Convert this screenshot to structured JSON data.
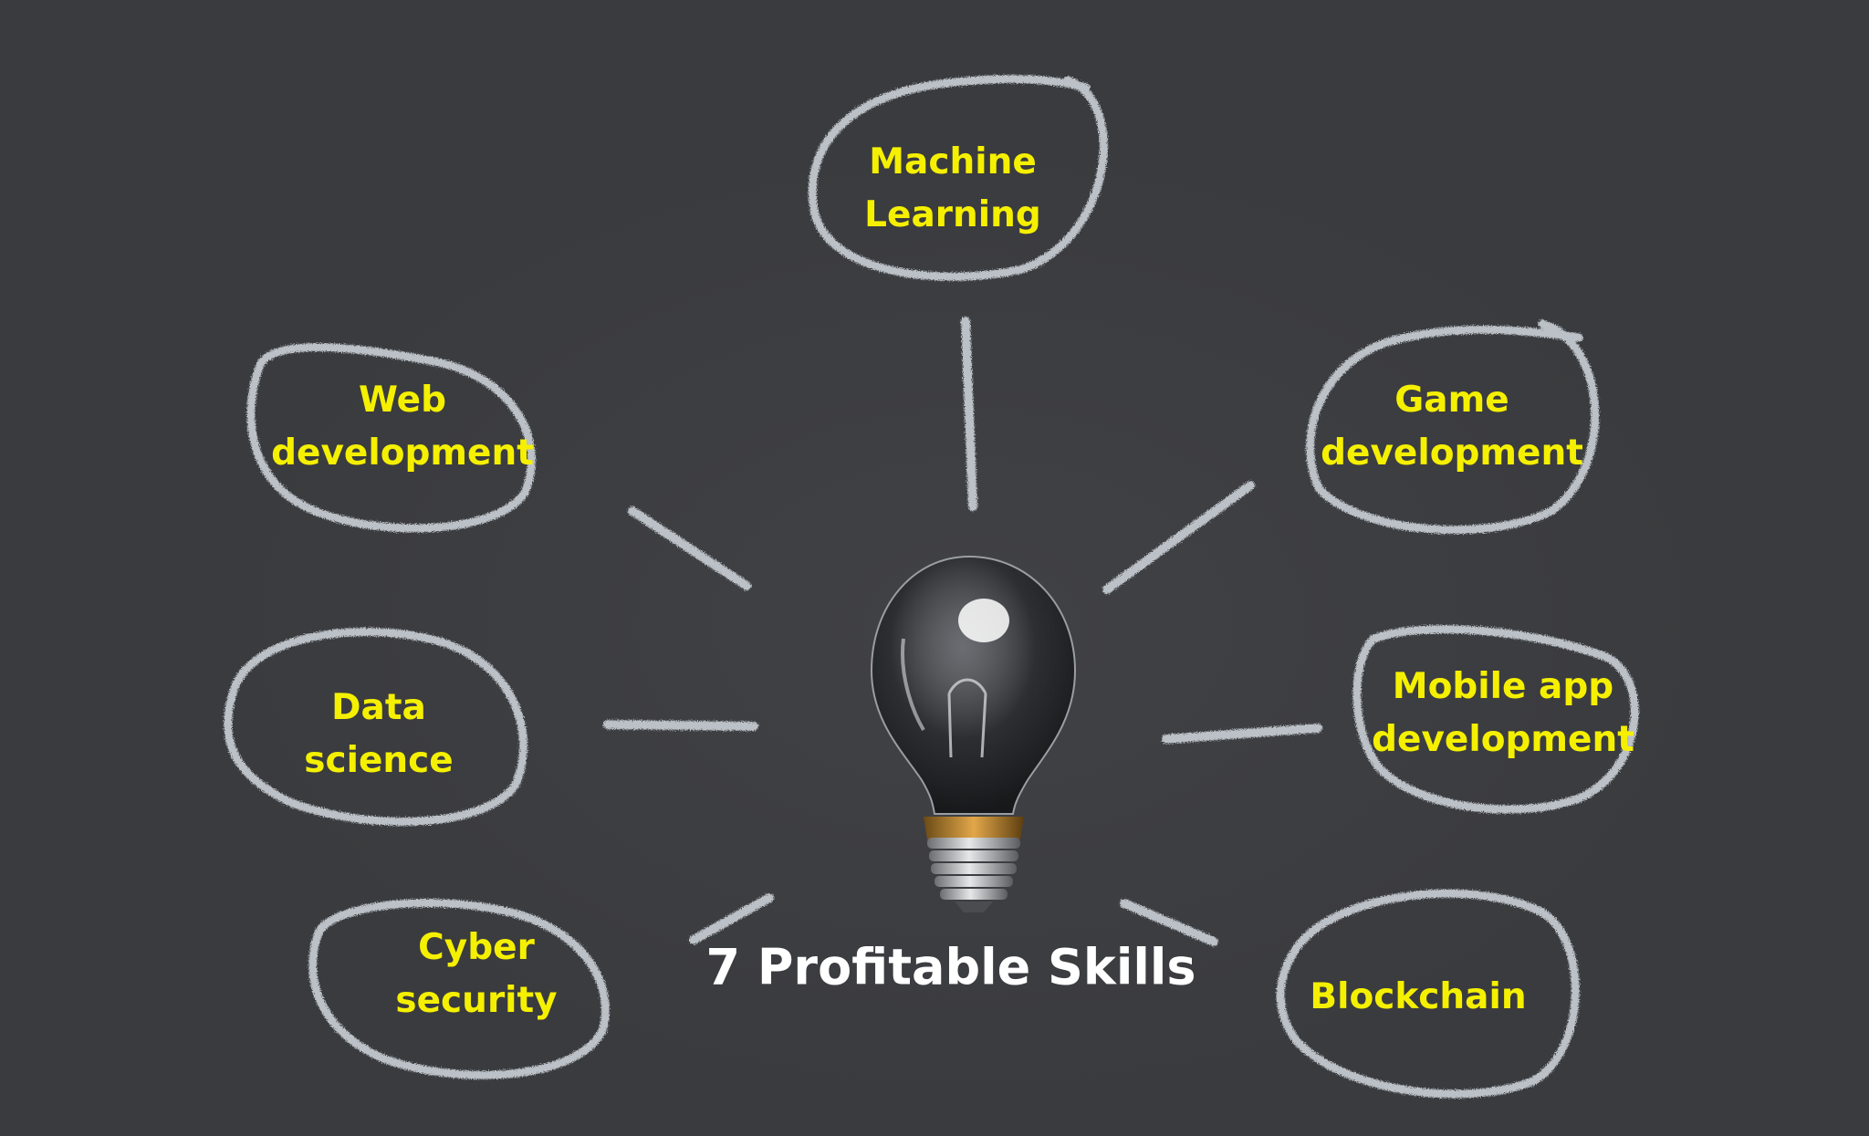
{
  "diagram": {
    "title": "7 Profitable Skills",
    "colors": {
      "background": "#3a3b3e",
      "label_text": "#f5f000",
      "title_text": "#ffffff",
      "chalk": "#c9d0d6"
    },
    "center_icon": "light-bulb-icon",
    "skills": [
      {
        "line1": "Machine",
        "line2": "Learning"
      },
      {
        "line1": "Web",
        "line2": "development"
      },
      {
        "line1": "Game",
        "line2": "development"
      },
      {
        "line1": "Data",
        "line2": "science"
      },
      {
        "line1": "Mobile app",
        "line2": "development"
      },
      {
        "line1": "Cyber",
        "line2": "security"
      },
      {
        "line1": "Blockchain",
        "line2": ""
      }
    ]
  }
}
